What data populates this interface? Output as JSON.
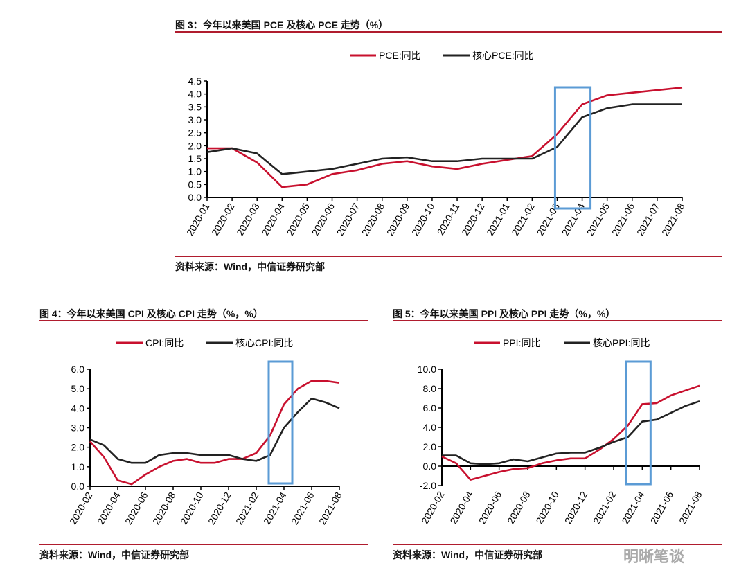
{
  "charts": [
    {
      "title": "图 3：今年以来美国 PCE 及核心 PCE 走势（%）",
      "source": "资料来源：Wind，中信证券研究部"
    },
    {
      "title": "图 4：今年以来美国 CPI 及核心 CPI 走势（%，%）",
      "source": "资料来源：Wind，中信证券研究部"
    },
    {
      "title": "图 5：今年以来美国 PPI 及核心 PPI 走势（%，%）",
      "source": "资料来源：Wind，中信证券研究部"
    }
  ],
  "watermark": "明晰笔谈",
  "chart_data": [
    {
      "type": "line",
      "title": "图 3：今年以来美国 PCE 及核心 PCE 走势（%）",
      "ylim": [
        0,
        4.5
      ],
      "yticks": [
        "0.0",
        "0.5",
        "1.0",
        "1.5",
        "2.0",
        "2.5",
        "3.0",
        "3.5",
        "4.0",
        "4.5"
      ],
      "ystep": 0.5,
      "x": [
        "2020-01",
        "2020-02",
        "2020-03",
        "2020-04",
        "2020-05",
        "2020-06",
        "2020-07",
        "2020-08",
        "2020-09",
        "2020-10",
        "2020-11",
        "2020-12",
        "2021-01",
        "2021-02",
        "2021-03",
        "2021-04",
        "2021-05",
        "2021-06",
        "2021-07",
        "2021-08"
      ],
      "xlabels": [
        "2020-01",
        "2020-02",
        "2020-03",
        "2020-04",
        "2020-05",
        "2020-06",
        "2020-07",
        "2020-08",
        "2020-09",
        "2020-10",
        "2020-11",
        "2020-12",
        "2021-01",
        "2021-02",
        "2021-03",
        "2021-04",
        "2021-05",
        "2021-06",
        "2021-07",
        "2021-08"
      ],
      "series": [
        {
          "name": "PCE:同比",
          "color": "#c8102e",
          "values": [
            1.9,
            1.9,
            1.35,
            0.4,
            0.5,
            0.9,
            1.05,
            1.3,
            1.4,
            1.2,
            1.1,
            1.3,
            1.45,
            1.6,
            2.45,
            3.6,
            3.95,
            4.05,
            4.15,
            4.25
          ]
        },
        {
          "name": "核心PCE:同比",
          "color": "#222222",
          "values": [
            1.75,
            1.9,
            1.7,
            0.9,
            1.0,
            1.1,
            1.3,
            1.5,
            1.55,
            1.4,
            1.4,
            1.5,
            1.5,
            1.5,
            1.95,
            3.1,
            3.45,
            3.6,
            3.6,
            3.6
          ]
        }
      ],
      "highlight": [
        "2021-03",
        "2021-04"
      ]
    },
    {
      "type": "line",
      "title": "图 4：今年以来美国 CPI 及核心 CPI 走势（%，%）",
      "ylim": [
        0,
        6
      ],
      "yticks": [
        "0.0",
        "1.0",
        "2.0",
        "3.0",
        "4.0",
        "5.0",
        "6.0"
      ],
      "ystep": 1,
      "x": [
        "2020-02",
        "2020-03",
        "2020-04",
        "2020-05",
        "2020-06",
        "2020-07",
        "2020-08",
        "2020-09",
        "2020-10",
        "2020-11",
        "2020-12",
        "2021-01",
        "2021-02",
        "2021-03",
        "2021-04",
        "2021-05",
        "2021-06",
        "2021-07",
        "2021-08"
      ],
      "xlabels": [
        "2020-02",
        "2020-04",
        "2020-06",
        "2020-08",
        "2020-10",
        "2020-12",
        "2021-02",
        "2021-04",
        "2021-06",
        "2021-08"
      ],
      "series": [
        {
          "name": "CPI:同比",
          "color": "#c8102e",
          "values": [
            2.3,
            1.5,
            0.3,
            0.1,
            0.6,
            1.0,
            1.3,
            1.4,
            1.2,
            1.2,
            1.4,
            1.4,
            1.7,
            2.6,
            4.2,
            5.0,
            5.4,
            5.4,
            5.3
          ]
        },
        {
          "name": "核心CPI:同比",
          "color": "#222222",
          "values": [
            2.4,
            2.1,
            1.4,
            1.2,
            1.2,
            1.6,
            1.7,
            1.7,
            1.6,
            1.6,
            1.6,
            1.4,
            1.3,
            1.6,
            3.0,
            3.8,
            4.5,
            4.3,
            4.0
          ]
        }
      ],
      "highlight": [
        "2021-03",
        "2021-04"
      ]
    },
    {
      "type": "line",
      "title": "图 5：今年以来美国 PPI 及核心 PPI 走势（%，%）",
      "ylim": [
        -2,
        10
      ],
      "yticks": [
        "-2.0",
        "0.0",
        "2.0",
        "4.0",
        "6.0",
        "8.0",
        "10.0"
      ],
      "ystep": 2,
      "x": [
        "2020-02",
        "2020-03",
        "2020-04",
        "2020-05",
        "2020-06",
        "2020-07",
        "2020-08",
        "2020-09",
        "2020-10",
        "2020-11",
        "2020-12",
        "2021-01",
        "2021-02",
        "2021-03",
        "2021-04",
        "2021-05",
        "2021-06",
        "2021-07",
        "2021-08"
      ],
      "xlabels": [
        "2020-02",
        "2020-04",
        "2020-06",
        "2020-08",
        "2020-10",
        "2020-12",
        "2021-02",
        "2021-04",
        "2021-06",
        "2021-08"
      ],
      "series": [
        {
          "name": "PPI:同比",
          "color": "#c8102e",
          "values": [
            1.0,
            0.3,
            -1.4,
            -1.0,
            -0.6,
            -0.3,
            -0.2,
            0.3,
            0.6,
            0.8,
            0.8,
            1.7,
            2.8,
            4.2,
            6.4,
            6.5,
            7.3,
            7.8,
            8.3
          ]
        },
        {
          "name": "核心PPI:同比",
          "color": "#222222",
          "values": [
            1.1,
            1.1,
            0.3,
            0.2,
            0.3,
            0.7,
            0.5,
            0.9,
            1.3,
            1.4,
            1.4,
            1.9,
            2.5,
            3.0,
            4.6,
            4.8,
            5.5,
            6.2,
            6.7
          ]
        }
      ],
      "highlight": [
        "2021-03",
        "2021-04"
      ]
    }
  ]
}
